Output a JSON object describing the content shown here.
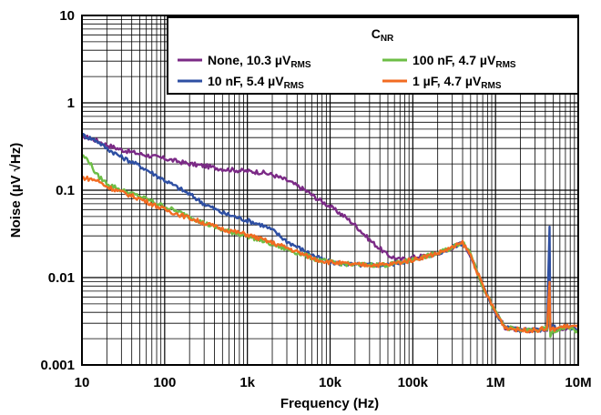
{
  "chart_data": {
    "type": "line",
    "xlabel": "Frequency (Hz)",
    "ylabel": "Noise (µV √Hz)",
    "x_scale": "log",
    "y_scale": "log",
    "xlim": [
      10,
      10000000
    ],
    "ylim": [
      0.001,
      10
    ],
    "x_ticks": [
      {
        "value": 10,
        "label": "10"
      },
      {
        "value": 100,
        "label": "100"
      },
      {
        "value": 1000,
        "label": "1k"
      },
      {
        "value": 10000,
        "label": "10k"
      },
      {
        "value": 100000,
        "label": "100k"
      },
      {
        "value": 1000000,
        "label": "1M"
      },
      {
        "value": 10000000,
        "label": "10M"
      }
    ],
    "y_ticks": [
      {
        "value": 0.001,
        "label": "0.001"
      },
      {
        "value": 0.01,
        "label": "0.01"
      },
      {
        "value": 0.1,
        "label": "0.1"
      },
      {
        "value": 1,
        "label": "1"
      },
      {
        "value": 10,
        "label": "10"
      }
    ],
    "grid": true,
    "legend": {
      "title_main": "C",
      "title_sub": "NR",
      "placement": "top-right"
    },
    "series": [
      {
        "name": "None, 10.3 µVRMS",
        "label_main": "None, 10.3 µV",
        "label_sub": "RMS",
        "color": "#7b2a86",
        "points": [
          [
            10,
            0.42
          ],
          [
            15,
            0.37
          ],
          [
            20,
            0.33
          ],
          [
            30,
            0.29
          ],
          [
            50,
            0.26
          ],
          [
            100,
            0.23
          ],
          [
            200,
            0.2
          ],
          [
            300,
            0.19
          ],
          [
            500,
            0.175
          ],
          [
            1000,
            0.165
          ],
          [
            1500,
            0.16
          ],
          [
            2000,
            0.15
          ],
          [
            3000,
            0.13
          ],
          [
            5000,
            0.1
          ],
          [
            7000,
            0.08
          ],
          [
            10000,
            0.065
          ],
          [
            15000,
            0.05
          ],
          [
            20000,
            0.04
          ],
          [
            30000,
            0.027
          ],
          [
            50000,
            0.018
          ],
          [
            70000,
            0.016
          ],
          [
            100000,
            0.017
          ],
          [
            150000,
            0.018
          ],
          [
            200000,
            0.019
          ],
          [
            300000,
            0.022
          ],
          [
            400000,
            0.025
          ],
          [
            500000,
            0.018
          ],
          [
            700000,
            0.008
          ],
          [
            1000000,
            0.004
          ],
          [
            1300000,
            0.0027
          ],
          [
            2000000,
            0.0025
          ],
          [
            3000000,
            0.0025
          ],
          [
            4200000,
            0.0026
          ],
          [
            4500000,
            0.0035
          ],
          [
            4700000,
            0.0026
          ],
          [
            6000000,
            0.0026
          ],
          [
            8000000,
            0.0027
          ],
          [
            10000000,
            0.0025
          ]
        ]
      },
      {
        "name": "10 nF, 5.4 µVRMS",
        "label_main": "10 nF, 5.4 µV",
        "label_sub": "RMS",
        "color": "#2e4fa3",
        "points": [
          [
            10,
            0.43
          ],
          [
            15,
            0.37
          ],
          [
            20,
            0.3
          ],
          [
            30,
            0.24
          ],
          [
            50,
            0.19
          ],
          [
            100,
            0.13
          ],
          [
            200,
            0.09
          ],
          [
            300,
            0.07
          ],
          [
            500,
            0.055
          ],
          [
            1000,
            0.045
          ],
          [
            1500,
            0.04
          ],
          [
            2000,
            0.035
          ],
          [
            3000,
            0.026
          ],
          [
            5000,
            0.02
          ],
          [
            7000,
            0.017
          ],
          [
            10000,
            0.015
          ],
          [
            20000,
            0.014
          ],
          [
            50000,
            0.014
          ],
          [
            100000,
            0.016
          ],
          [
            200000,
            0.019
          ],
          [
            300000,
            0.022
          ],
          [
            400000,
            0.025
          ],
          [
            500000,
            0.018
          ],
          [
            700000,
            0.008
          ],
          [
            1000000,
            0.004
          ],
          [
            1300000,
            0.0027
          ],
          [
            2000000,
            0.0025
          ],
          [
            3000000,
            0.0025
          ],
          [
            4200000,
            0.0026
          ],
          [
            4500000,
            0.04
          ],
          [
            4600000,
            0.0028
          ],
          [
            6000000,
            0.0026
          ],
          [
            8000000,
            0.0027
          ],
          [
            10000000,
            0.0024
          ]
        ]
      },
      {
        "name": "100 nF, 4.7 µVRMS",
        "label_main": "100 nF, 4.7 µV",
        "label_sub": "RMS",
        "color": "#6dbe45",
        "points": [
          [
            10,
            0.25
          ],
          [
            12,
            0.22
          ],
          [
            15,
            0.15
          ],
          [
            20,
            0.12
          ],
          [
            30,
            0.1
          ],
          [
            50,
            0.085
          ],
          [
            100,
            0.065
          ],
          [
            200,
            0.05
          ],
          [
            300,
            0.042
          ],
          [
            500,
            0.035
          ],
          [
            1000,
            0.03
          ],
          [
            2000,
            0.024
          ],
          [
            3000,
            0.021
          ],
          [
            5000,
            0.018
          ],
          [
            7000,
            0.016
          ],
          [
            10000,
            0.015
          ],
          [
            20000,
            0.014
          ],
          [
            50000,
            0.014
          ],
          [
            100000,
            0.016
          ],
          [
            200000,
            0.019
          ],
          [
            300000,
            0.022
          ],
          [
            400000,
            0.026
          ],
          [
            500000,
            0.019
          ],
          [
            700000,
            0.008
          ],
          [
            1000000,
            0.004
          ],
          [
            1300000,
            0.0027
          ],
          [
            2000000,
            0.0025
          ],
          [
            3000000,
            0.0025
          ],
          [
            4200000,
            0.0026
          ],
          [
            4500000,
            0.006
          ],
          [
            4600000,
            0.0022
          ],
          [
            6000000,
            0.0026
          ],
          [
            8000000,
            0.0027
          ],
          [
            10000000,
            0.0023
          ]
        ]
      },
      {
        "name": "1 µF, 4.7 µVRMS",
        "label_main": "1 µF, 4.7 µV",
        "label_sub": "RMS",
        "color": "#f26b21",
        "points": [
          [
            10,
            0.14
          ],
          [
            15,
            0.13
          ],
          [
            20,
            0.11
          ],
          [
            30,
            0.095
          ],
          [
            50,
            0.08
          ],
          [
            100,
            0.06
          ],
          [
            200,
            0.048
          ],
          [
            300,
            0.042
          ],
          [
            500,
            0.036
          ],
          [
            1000,
            0.031
          ],
          [
            2000,
            0.025
          ],
          [
            3000,
            0.022
          ],
          [
            5000,
            0.018
          ],
          [
            7000,
            0.016
          ],
          [
            10000,
            0.015
          ],
          [
            20000,
            0.014
          ],
          [
            50000,
            0.014
          ],
          [
            100000,
            0.016
          ],
          [
            200000,
            0.019
          ],
          [
            300000,
            0.022
          ],
          [
            400000,
            0.025
          ],
          [
            500000,
            0.018
          ],
          [
            700000,
            0.008
          ],
          [
            1000000,
            0.004
          ],
          [
            1300000,
            0.0027
          ],
          [
            2000000,
            0.0025
          ],
          [
            3000000,
            0.0025
          ],
          [
            4200000,
            0.0026
          ],
          [
            4500000,
            0.009
          ],
          [
            4600000,
            0.0025
          ],
          [
            6000000,
            0.0027
          ],
          [
            8000000,
            0.0028
          ],
          [
            10000000,
            0.0027
          ]
        ]
      }
    ]
  }
}
